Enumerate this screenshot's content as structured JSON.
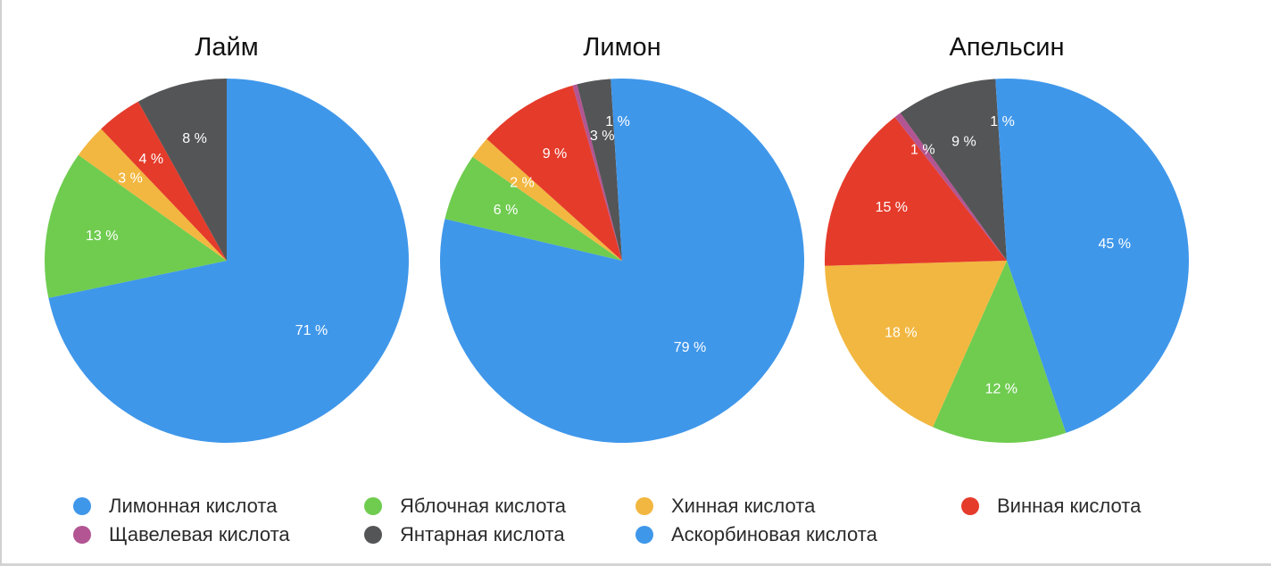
{
  "chart_data": [
    {
      "type": "pie",
      "title": "Лайм",
      "slices": [
        {
          "key": "citric",
          "value": 71,
          "label": "71 %"
        },
        {
          "key": "malic",
          "value": 13,
          "label": "13 %"
        },
        {
          "key": "quinic",
          "value": 3,
          "label": "3 %"
        },
        {
          "key": "tartaric",
          "value": 4,
          "label": "4 %"
        },
        {
          "key": "succinic",
          "value": 8,
          "label": "8 %"
        }
      ]
    },
    {
      "type": "pie",
      "title": "Лимон",
      "slices": [
        {
          "key": "citric",
          "value": 79,
          "label": "79 %"
        },
        {
          "key": "malic",
          "value": 6,
          "label": "6 %"
        },
        {
          "key": "quinic",
          "value": 2,
          "label": "2 %"
        },
        {
          "key": "tartaric",
          "value": 9,
          "label": "9 %"
        },
        {
          "key": "oxalic",
          "value": 0.4,
          "label": ""
        },
        {
          "key": "succinic",
          "value": 3,
          "label": "3 %"
        },
        {
          "key": "ascorbic",
          "value": 1,
          "label": "1 %"
        }
      ]
    },
    {
      "type": "pie",
      "title": "Апельсин",
      "slices": [
        {
          "key": "citric",
          "value": 45,
          "label": "45 %"
        },
        {
          "key": "malic",
          "value": 12,
          "label": "12 %"
        },
        {
          "key": "quinic",
          "value": 18,
          "label": "18 %"
        },
        {
          "key": "tartaric",
          "value": 15,
          "label": "15 %"
        },
        {
          "key": "oxalic",
          "value": 0.6,
          "label": "1 %"
        },
        {
          "key": "succinic",
          "value": 9,
          "label": "9 %"
        },
        {
          "key": "ascorbic",
          "value": 1,
          "label": "1 %"
        }
      ]
    }
  ],
  "series": {
    "citric": {
      "name": "Лимонная кислота",
      "color": "#3f97ea"
    },
    "malic": {
      "name": "Яблочная кислота",
      "color": "#6fcc4f"
    },
    "quinic": {
      "name": "Хинная кислота",
      "color": "#f2b740"
    },
    "tartaric": {
      "name": "Винная кислота",
      "color": "#e53b2b"
    },
    "oxalic": {
      "name": "Щавелевая кислота",
      "color": "#b25592"
    },
    "succinic": {
      "name": "Янтарная кислота",
      "color": "#545556"
    },
    "ascorbic": {
      "name": "Аскорбиновая кислота",
      "color": "#3f97ea"
    }
  },
  "legend": [
    {
      "key": "citric",
      "label": "Лимонная кислота"
    },
    {
      "key": "malic",
      "label": "Яблочная кислота"
    },
    {
      "key": "quinic",
      "label": "Хинная кислота"
    },
    {
      "key": "tartaric",
      "label": "Винная кислота"
    },
    {
      "key": "oxalic",
      "label": "Щавелевая кислота"
    },
    {
      "key": "succinic",
      "label": "Янтарная кислота"
    },
    {
      "key": "ascorbic",
      "label": "Аскорбиновая кислота"
    }
  ]
}
